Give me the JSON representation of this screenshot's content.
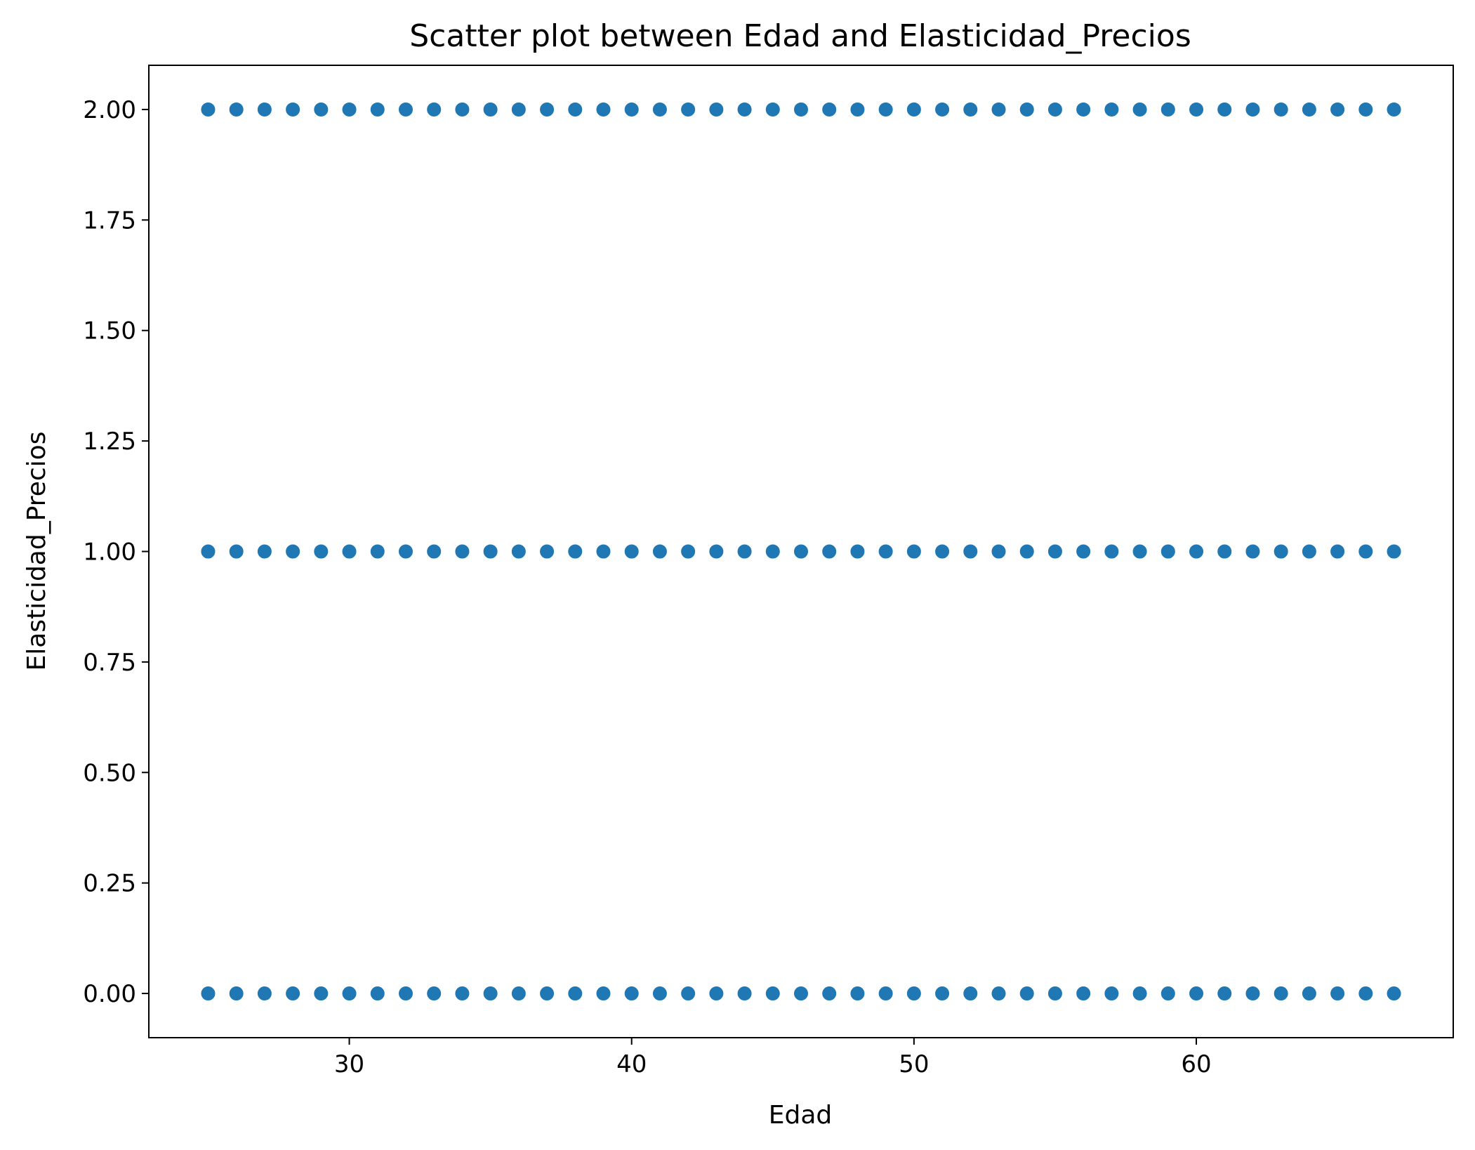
{
  "chart_data": {
    "type": "scatter",
    "title": "Scatter plot between Edad and Elasticidad_Precios",
    "xlabel": "Edad",
    "ylabel": "Elasticidad_Precios",
    "xlim": [
      22.9,
      69.1
    ],
    "ylim": [
      -0.1,
      2.1
    ],
    "x_ticks": [
      30,
      40,
      50,
      60
    ],
    "x_tick_labels": [
      "30",
      "40",
      "50",
      "60"
    ],
    "y_ticks": [
      0,
      0.25,
      0.5,
      0.75,
      1.0,
      1.25,
      1.5,
      1.75,
      2.0
    ],
    "y_tick_labels": [
      "0.00",
      "0.25",
      "0.50",
      "0.75",
      "1.00",
      "1.25",
      "1.50",
      "1.75",
      "2.00"
    ],
    "grid": false,
    "marker_color": "#1f77b4",
    "x_min": 25,
    "x_max": 67,
    "y_levels": [
      0,
      1,
      2
    ]
  }
}
